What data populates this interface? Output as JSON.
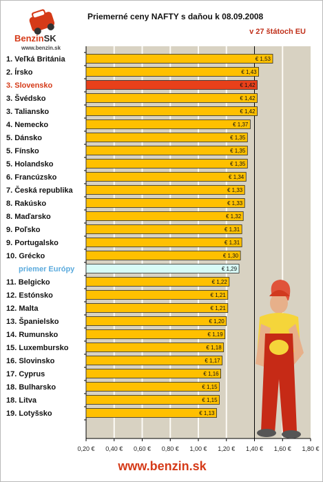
{
  "header": {
    "title": "Priemerné ceny NAFTY s daňou k 08.09.2008",
    "subtitle": "v 27 štátoch EU"
  },
  "logo": {
    "brand_main": "Benzin",
    "brand_suffix": "SK",
    "url": "www.benzin.sk"
  },
  "footer": {
    "url": "www.benzin.sk"
  },
  "colors": {
    "plot_background": "#d8d2c2",
    "bar_fill": "#ffc000",
    "bar_highlight": "#e8401a",
    "bar_average": "#d8fbf6",
    "label_highlight": "#d53a18",
    "label_average": "#5aaadd"
  },
  "chart_data": {
    "type": "bar",
    "orientation": "horizontal",
    "title": "Priemerné ceny NAFTY s daňou k 08.09.2008",
    "subtitle": "v 27 štátoch EU",
    "categories": [
      "1. Veľká Británia",
      "2. Írsko",
      "3. Slovensko",
      "3. Švédsko",
      "3. Taliansko",
      "4. Nemecko",
      "5. Dánsko",
      "5. Fínsko",
      "5. Holandsko",
      "6. Francúzsko",
      "7. Česká republika",
      "8. Rakúsko",
      "8. Maďarsko",
      "9. Poľsko",
      "9. Portugalsko",
      "10. Grécko",
      "priemer Európy",
      "11. Belgicko",
      "12. Estónsko",
      "12. Malta",
      "13. Španielsko",
      "14. Rumunsko",
      "15. Luxembursko",
      "16. Slovinsko",
      "17. Cyprus",
      "18. Bulharsko",
      "18. Litva",
      "19. Lotyšsko"
    ],
    "values": [
      1.53,
      1.43,
      1.42,
      1.42,
      1.42,
      1.37,
      1.35,
      1.35,
      1.35,
      1.34,
      1.33,
      1.33,
      1.32,
      1.31,
      1.31,
      1.3,
      1.29,
      1.22,
      1.21,
      1.21,
      1.2,
      1.19,
      1.18,
      1.17,
      1.16,
      1.15,
      1.15,
      1.13
    ],
    "value_labels": [
      "€ 1,53",
      "€ 1,43",
      "€ 1,42",
      "€ 1,42",
      "€ 1,42",
      "€ 1,37",
      "€ 1,35",
      "€ 1,35",
      "€ 1,35",
      "€ 1,34",
      "€ 1,33",
      "€ 1,33",
      "€ 1,32",
      "€ 1,31",
      "€ 1,31",
      "€ 1,30",
      "€ 1,29",
      "€ 1,22",
      "€ 1,21",
      "€ 1,21",
      "€ 1,20",
      "€ 1,19",
      "€ 1,18",
      "€ 1,17",
      "€ 1,16",
      "€ 1,15",
      "€ 1,15",
      "€ 1,13"
    ],
    "highlight_index": 2,
    "average_index": 16,
    "xlim": [
      0.2,
      1.8
    ],
    "xticks": [
      0.2,
      0.4,
      0.6,
      0.8,
      1.0,
      1.2,
      1.4,
      1.6,
      1.8
    ],
    "xtick_labels": [
      "0,20 €",
      "0,40 €",
      "0,60 €",
      "0,80 €",
      "1,00 €",
      "1,20 €",
      "1,40 €",
      "1,60 €",
      "1,80 €"
    ],
    "grid": true
  }
}
